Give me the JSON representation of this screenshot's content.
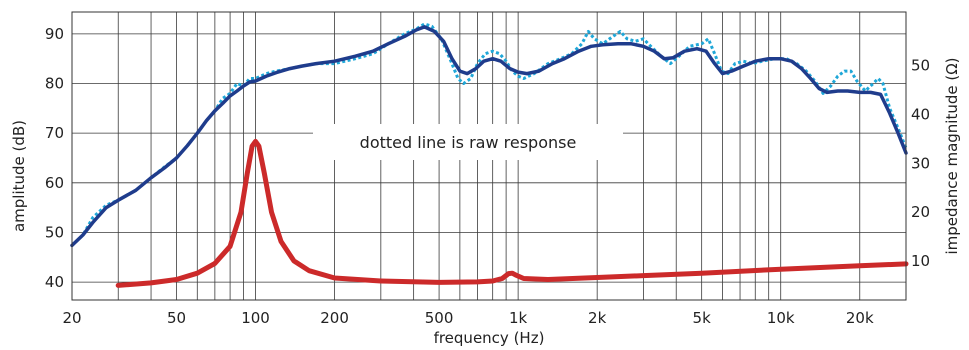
{
  "chart_data": {
    "type": "line",
    "xlabel": "frequency (Hz)",
    "ylabel": "amplitude (dB)",
    "y2label": "impedance magnitude (Ω)",
    "x_scale": "log",
    "xlim": [
      20,
      30000
    ],
    "ylim": [
      36.4,
      94.4
    ],
    "y2lim": [
      2.0,
      61.0
    ],
    "grid": true,
    "x_ticks": [
      {
        "value": 20,
        "label": "20"
      },
      {
        "value": 50,
        "label": "50"
      },
      {
        "value": 100,
        "label": "100"
      },
      {
        "value": 200,
        "label": "200"
      },
      {
        "value": 500,
        "label": "500"
      },
      {
        "value": 1000,
        "label": "1k"
      },
      {
        "value": 2000,
        "label": "2k"
      },
      {
        "value": 5000,
        "label": "5k"
      },
      {
        "value": 10000,
        "label": "10k"
      },
      {
        "value": 20000,
        "label": "20k"
      }
    ],
    "y_ticks": [
      40,
      50,
      60,
      70,
      80,
      90
    ],
    "y2_ticks": [
      10,
      20,
      30,
      40,
      50
    ],
    "annotation": "dotted line is raw response",
    "series": [
      {
        "color": "#1fa7d8",
        "dash": "dotted",
        "axis": "left",
        "points": [
          [
            20,
            47.4
          ],
          [
            22,
            49.5
          ],
          [
            24,
            53
          ],
          [
            27,
            55.5
          ],
          [
            30,
            56.5
          ],
          [
            35,
            58.5
          ],
          [
            40,
            61
          ],
          [
            45,
            63.2
          ],
          [
            50,
            65
          ],
          [
            55,
            67.5
          ],
          [
            60,
            70
          ],
          [
            65,
            72.5
          ],
          [
            70,
            74.5
          ],
          [
            75,
            77
          ],
          [
            80,
            78
          ],
          [
            85,
            80
          ],
          [
            90,
            79.5
          ],
          [
            95,
            81
          ],
          [
            100,
            81
          ],
          [
            110,
            82
          ],
          [
            120,
            82.5
          ],
          [
            135,
            83
          ],
          [
            150,
            83.5
          ],
          [
            170,
            84
          ],
          [
            200,
            84
          ],
          [
            240,
            85
          ],
          [
            280,
            86
          ],
          [
            320,
            88
          ],
          [
            370,
            90
          ],
          [
            410,
            91
          ],
          [
            440,
            92
          ],
          [
            470,
            91.5
          ],
          [
            510,
            89
          ],
          [
            550,
            85
          ],
          [
            590,
            81
          ],
          [
            620,
            80
          ],
          [
            660,
            81
          ],
          [
            700,
            84
          ],
          [
            750,
            86
          ],
          [
            800,
            86.5
          ],
          [
            850,
            86
          ],
          [
            900,
            84.5
          ],
          [
            950,
            82.5
          ],
          [
            1000,
            81.5
          ],
          [
            1050,
            81
          ],
          [
            1150,
            82
          ],
          [
            1300,
            84
          ],
          [
            1450,
            85
          ],
          [
            1600,
            86
          ],
          [
            1750,
            88
          ],
          [
            1850,
            90.5
          ],
          [
            1950,
            89
          ],
          [
            2100,
            88
          ],
          [
            2300,
            89.5
          ],
          [
            2450,
            90.5
          ],
          [
            2600,
            89
          ],
          [
            2800,
            88.5
          ],
          [
            3000,
            89
          ],
          [
            3200,
            87.5
          ],
          [
            3500,
            85.5
          ],
          [
            3800,
            84
          ],
          [
            4100,
            85.5
          ],
          [
            4500,
            87.5
          ],
          [
            5000,
            88
          ],
          [
            5300,
            89
          ],
          [
            5600,
            86
          ],
          [
            5950,
            82.5
          ],
          [
            6300,
            82
          ],
          [
            6700,
            84
          ],
          [
            7200,
            84.5
          ],
          [
            7800,
            84
          ],
          [
            8500,
            84.5
          ],
          [
            9500,
            85
          ],
          [
            10500,
            85
          ],
          [
            11500,
            84
          ],
          [
            12500,
            82.5
          ],
          [
            13500,
            80.5
          ],
          [
            14500,
            78
          ],
          [
            15500,
            79.5
          ],
          [
            16500,
            81.5
          ],
          [
            17500,
            82.5
          ],
          [
            18500,
            82.5
          ],
          [
            19500,
            80.5
          ],
          [
            21000,
            78.5
          ],
          [
            22500,
            80
          ],
          [
            23500,
            81
          ],
          [
            24500,
            80
          ],
          [
            26000,
            75
          ],
          [
            28000,
            71
          ],
          [
            30000,
            67
          ]
        ]
      },
      {
        "color": "#1f3c8c",
        "dash": "solid",
        "axis": "left",
        "points": [
          [
            20,
            47.4
          ],
          [
            22,
            49.5
          ],
          [
            24,
            52
          ],
          [
            27,
            55
          ],
          [
            30,
            56.5
          ],
          [
            35,
            58.5
          ],
          [
            40,
            61
          ],
          [
            45,
            63
          ],
          [
            50,
            65
          ],
          [
            55,
            67.5
          ],
          [
            60,
            70
          ],
          [
            65,
            72.5
          ],
          [
            70,
            74.5
          ],
          [
            75,
            76
          ],
          [
            80,
            77.5
          ],
          [
            85,
            78.5
          ],
          [
            90,
            79.5
          ],
          [
            95,
            80.3
          ],
          [
            100,
            80.5
          ],
          [
            110,
            81.5
          ],
          [
            120,
            82.2
          ],
          [
            135,
            83
          ],
          [
            150,
            83.5
          ],
          [
            170,
            84
          ],
          [
            200,
            84.5
          ],
          [
            240,
            85.5
          ],
          [
            280,
            86.5
          ],
          [
            320,
            88
          ],
          [
            370,
            89.5
          ],
          [
            410,
            90.8
          ],
          [
            440,
            91.4
          ],
          [
            480,
            90.5
          ],
          [
            520,
            88.5
          ],
          [
            560,
            85
          ],
          [
            600,
            82.5
          ],
          [
            640,
            82
          ],
          [
            690,
            83
          ],
          [
            740,
            84.5
          ],
          [
            800,
            85
          ],
          [
            860,
            84.5
          ],
          [
            930,
            83
          ],
          [
            1000,
            82.3
          ],
          [
            1080,
            82
          ],
          [
            1200,
            82.5
          ],
          [
            1350,
            84
          ],
          [
            1500,
            85
          ],
          [
            1700,
            86.5
          ],
          [
            1900,
            87.5
          ],
          [
            2100,
            87.8
          ],
          [
            2400,
            88
          ],
          [
            2700,
            88
          ],
          [
            3000,
            87.5
          ],
          [
            3300,
            86.5
          ],
          [
            3600,
            85
          ],
          [
            3900,
            85.2
          ],
          [
            4300,
            86.5
          ],
          [
            4800,
            87
          ],
          [
            5200,
            86.5
          ],
          [
            5600,
            84
          ],
          [
            6000,
            82
          ],
          [
            6500,
            82.5
          ],
          [
            7200,
            83.5
          ],
          [
            8000,
            84.5
          ],
          [
            9000,
            85
          ],
          [
            10000,
            85
          ],
          [
            11000,
            84.5
          ],
          [
            12000,
            83
          ],
          [
            13000,
            81
          ],
          [
            14000,
            79
          ],
          [
            15000,
            78.2
          ],
          [
            16500,
            78.5
          ],
          [
            18000,
            78.5
          ],
          [
            20000,
            78.2
          ],
          [
            22000,
            78.2
          ],
          [
            24000,
            77.8
          ],
          [
            26000,
            74
          ],
          [
            28000,
            70
          ],
          [
            30000,
            66
          ]
        ]
      },
      {
        "color": "#cc2a2a",
        "dash": "solid",
        "axis": "right",
        "points": [
          [
            30,
            5.0
          ],
          [
            40,
            5.5
          ],
          [
            50,
            6.2
          ],
          [
            60,
            7.5
          ],
          [
            70,
            9.5
          ],
          [
            80,
            13
          ],
          [
            88,
            20
          ],
          [
            93,
            28
          ],
          [
            97,
            33.5
          ],
          [
            100,
            34.5
          ],
          [
            103,
            33.5
          ],
          [
            108,
            28
          ],
          [
            115,
            20
          ],
          [
            125,
            14
          ],
          [
            140,
            10
          ],
          [
            160,
            8
          ],
          [
            200,
            6.5
          ],
          [
            300,
            5.9
          ],
          [
            500,
            5.6
          ],
          [
            700,
            5.7
          ],
          [
            800,
            5.9
          ],
          [
            870,
            6.4
          ],
          [
            920,
            7.4
          ],
          [
            950,
            7.5
          ],
          [
            980,
            7.1
          ],
          [
            1050,
            6.4
          ],
          [
            1300,
            6.2
          ],
          [
            2000,
            6.6
          ],
          [
            3000,
            7.0
          ],
          [
            5000,
            7.5
          ],
          [
            10000,
            8.3
          ],
          [
            20000,
            9.0
          ],
          [
            30000,
            9.4
          ]
        ]
      }
    ]
  }
}
